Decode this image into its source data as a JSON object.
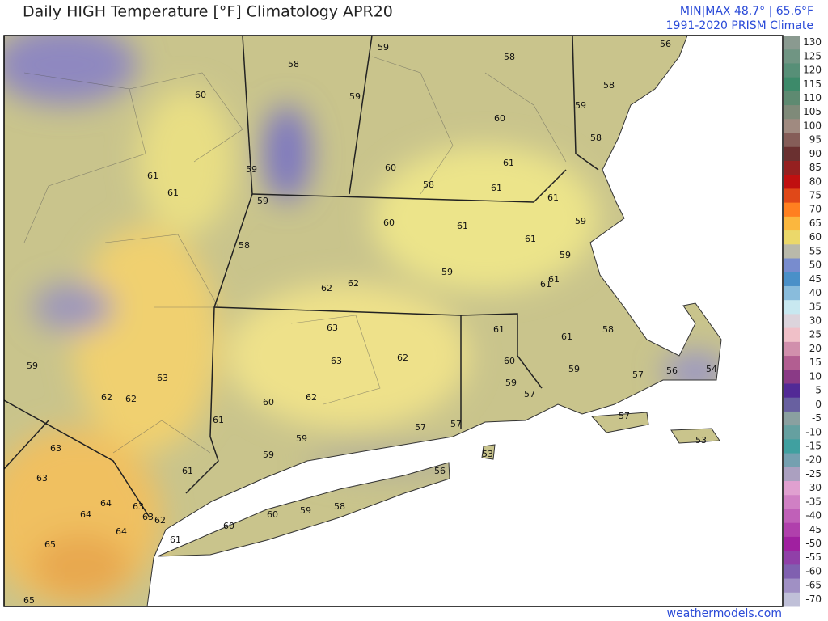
{
  "header": {
    "title": "Daily HIGH Temperature [°F]  Climatology APR20",
    "minmax": "MIN|MAX 48.7° | 65.6°F",
    "source": "1991-2020 PRISM Climate"
  },
  "footer": "weathermodels.com",
  "colorbar": {
    "labels": [
      130,
      125,
      120,
      115,
      110,
      105,
      100,
      95,
      90,
      85,
      80,
      75,
      70,
      65,
      60,
      55,
      50,
      45,
      40,
      35,
      30,
      25,
      20,
      15,
      10,
      5,
      0,
      -5,
      -10,
      -15,
      -20,
      -25,
      -30,
      -35,
      -40,
      -45,
      -50,
      -55,
      -60,
      -65,
      -70
    ]
  },
  "stations": [
    58,
    59,
    58,
    56,
    60,
    59,
    58,
    59,
    60,
    58,
    61,
    61,
    59,
    60,
    61,
    58,
    61,
    61,
    59,
    60,
    61,
    59,
    61,
    58,
    59,
    59,
    61,
    61,
    62,
    62,
    63,
    61,
    58,
    61,
    63,
    62,
    60,
    59,
    63,
    59,
    59,
    57,
    56,
    54,
    62,
    62,
    62,
    60,
    57,
    61,
    57,
    57,
    57,
    59,
    59,
    53,
    63,
    53,
    56,
    61,
    63,
    63,
    64,
    64,
    63,
    62,
    60,
    59,
    58,
    60,
    64,
    61,
    65,
    65
  ]
}
